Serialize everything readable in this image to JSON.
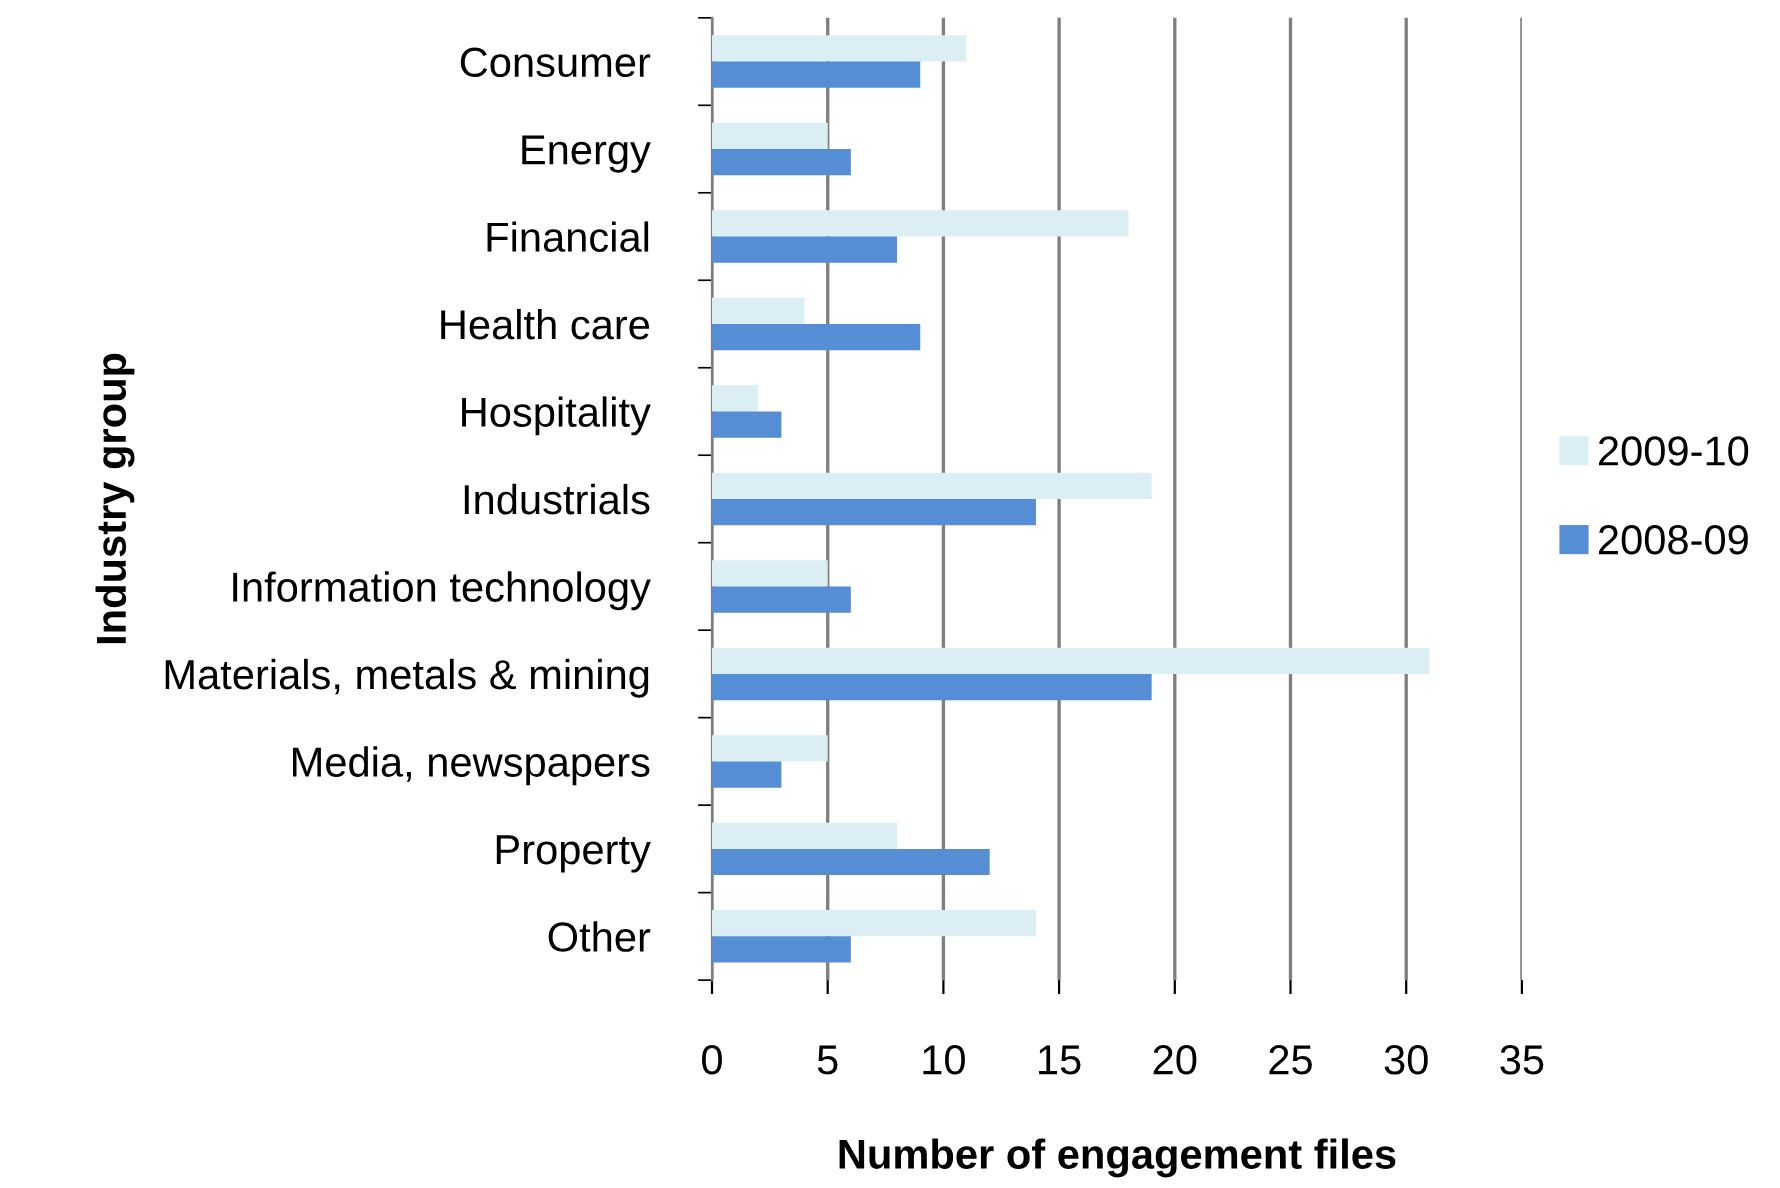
{
  "chart_data": {
    "type": "bar",
    "orientation": "horizontal",
    "xlabel": "Number of engagement files",
    "ylabel": "Industry group",
    "categories": [
      "Consumer",
      "Energy",
      "Financial",
      "Health care",
      "Hospitality",
      "Industrials",
      "Information technology",
      "Materials, metals & mining",
      "Media, newspapers",
      "Property",
      "Other"
    ],
    "series": [
      {
        "name": "2009-10",
        "color": "#dbeef4",
        "values": [
          11,
          5,
          18,
          4,
          2,
          19,
          5,
          31,
          5,
          8,
          14
        ]
      },
      {
        "name": "2008-09",
        "color": "#558ed5",
        "values": [
          9,
          6,
          8,
          9,
          3,
          14,
          6,
          19,
          3,
          12,
          6
        ]
      }
    ],
    "xlim": [
      0,
      35
    ],
    "xticks": [
      0,
      5,
      10,
      15,
      20,
      25,
      30,
      35
    ],
    "grid": "x",
    "legend": "right"
  }
}
